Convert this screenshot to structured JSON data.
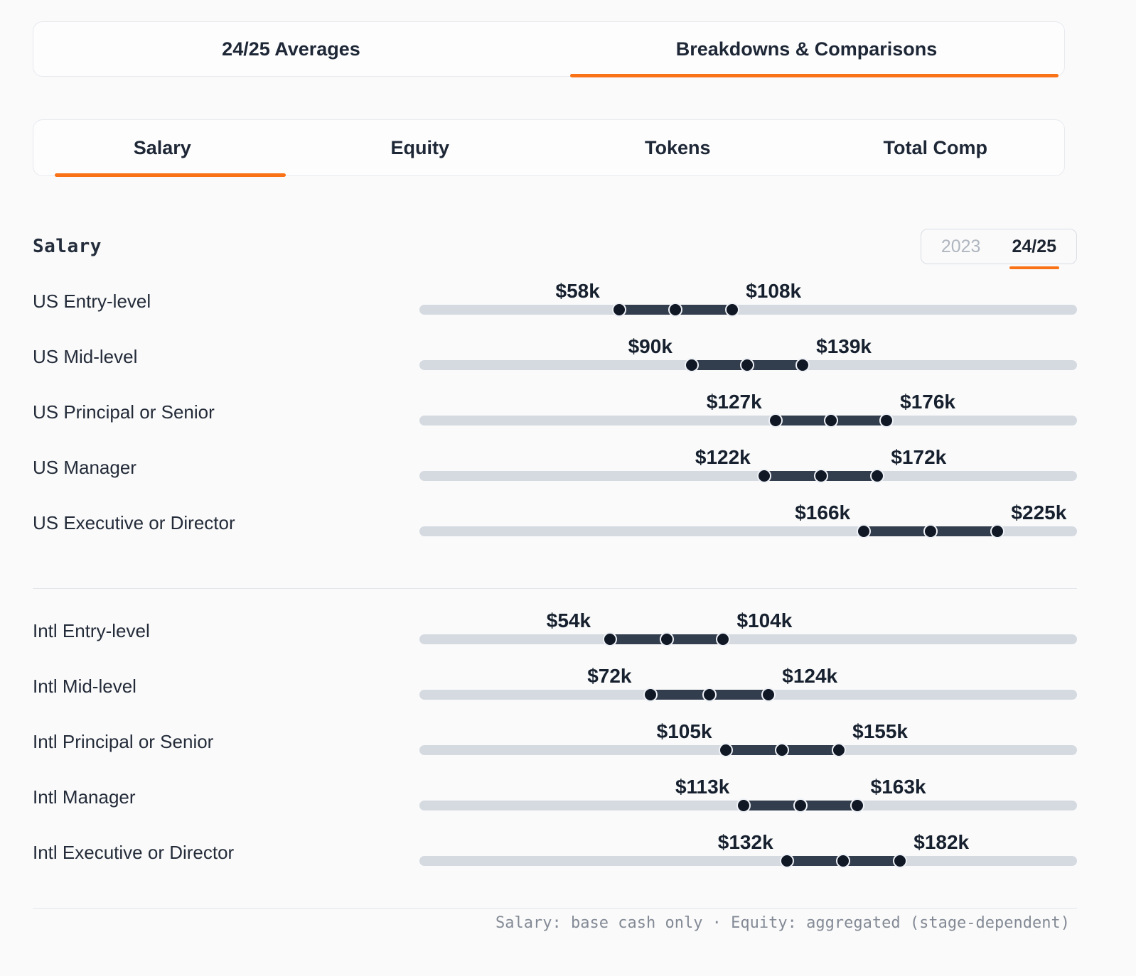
{
  "top_tabs": {
    "items": [
      {
        "label": "24/25 Averages",
        "active": false
      },
      {
        "label": "Breakdowns & Comparisons",
        "active": true
      }
    ]
  },
  "metric_tabs": {
    "items": [
      {
        "label": "Salary",
        "active": true
      },
      {
        "label": "Equity",
        "active": false
      },
      {
        "label": "Tokens",
        "active": false
      },
      {
        "label": "Total Comp",
        "active": false
      }
    ]
  },
  "section": {
    "title": "Salary",
    "year_toggle": {
      "options": [
        {
          "label": "2023",
          "active": false
        },
        {
          "label": "24/25",
          "active": true
        }
      ]
    }
  },
  "chart_data": {
    "type": "range-dumbbell",
    "title": "Salary",
    "unit_prefix": "$",
    "unit_suffix": "k",
    "axis": {
      "min": -30,
      "max": 260
    },
    "legend": "none",
    "groups": [
      {
        "name": "US",
        "rows": [
          {
            "label": "US Entry-level",
            "min": 58,
            "max": 108
          },
          {
            "label": "US Mid-level",
            "min": 90,
            "max": 139
          },
          {
            "label": "US Principal or Senior",
            "min": 127,
            "max": 176
          },
          {
            "label": "US Manager",
            "min": 122,
            "max": 172
          },
          {
            "label": "US Executive or Director",
            "min": 166,
            "max": 225
          }
        ]
      },
      {
        "name": "Intl",
        "rows": [
          {
            "label": "Intl Entry-level",
            "min": 54,
            "max": 104
          },
          {
            "label": "Intl Mid-level",
            "min": 72,
            "max": 124
          },
          {
            "label": "Intl Principal or Senior",
            "min": 105,
            "max": 155
          },
          {
            "label": "Intl Manager",
            "min": 113,
            "max": 163
          },
          {
            "label": "Intl Executive or Director",
            "min": 132,
            "max": 182
          }
        ]
      }
    ]
  },
  "footnote": "Salary: base cash only · Equity: aggregated (stage-dependent)",
  "colors": {
    "accent": "#f97316",
    "track": "#d5dae1",
    "segment": "#323d4e",
    "dot": "#101826",
    "dot_ring": "#eef1f6"
  }
}
